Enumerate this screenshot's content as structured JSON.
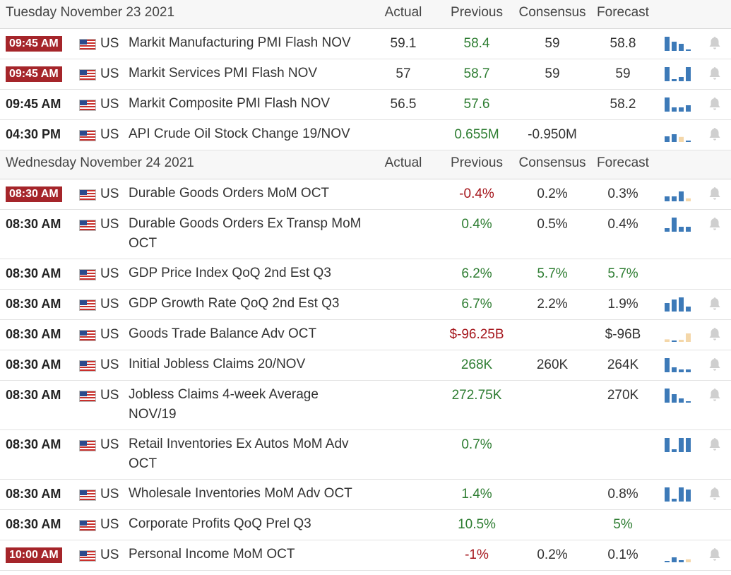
{
  "columns": {
    "actual": "Actual",
    "previous": "Previous",
    "consensus": "Consensus",
    "forecast": "Forecast"
  },
  "days": [
    {
      "date": "Tuesday November 23 2021",
      "events": [
        {
          "time": "09:45 AM",
          "highlight": true,
          "country": "US",
          "event": "Markit Manufacturing PMI Flash NOV",
          "actual": "59.1",
          "previous": "58.4",
          "previous_tone": "green",
          "consensus": "59",
          "consensus_tone": "",
          "forecast": "58.8",
          "forecast_tone": "",
          "bars": [
            1.0,
            0.65,
            0.5,
            -0.1
          ],
          "bell": true
        },
        {
          "time": "09:45 AM",
          "highlight": true,
          "country": "US",
          "event": "Markit Services PMI Flash NOV",
          "actual": "57",
          "previous": "58.7",
          "previous_tone": "green",
          "consensus": "59",
          "consensus_tone": "",
          "forecast": "59",
          "forecast_tone": "",
          "bars": [
            1.0,
            0.15,
            0.3,
            1.0
          ],
          "bell": true
        },
        {
          "time": "09:45 AM",
          "highlight": false,
          "country": "US",
          "event": "Markit Composite PMI Flash NOV",
          "actual": "56.5",
          "previous": "57.6",
          "previous_tone": "green",
          "consensus": "",
          "consensus_tone": "",
          "forecast": "58.2",
          "forecast_tone": "",
          "bars": [
            1.0,
            0.3,
            0.3,
            0.45
          ],
          "bell": true
        },
        {
          "time": "04:30 PM",
          "highlight": false,
          "country": "US",
          "event": "API Crude Oil Stock Change 19/NOV",
          "actual": "",
          "previous": "0.655M",
          "previous_tone": "green",
          "consensus": "-0.950M",
          "consensus_tone": "",
          "forecast": "",
          "forecast_tone": "",
          "bars": [
            0.4,
            0.55,
            -0.6,
            0.1
          ],
          "bell": true
        }
      ]
    },
    {
      "date": "Wednesday November 24 2021",
      "events": [
        {
          "time": "08:30 AM",
          "highlight": true,
          "country": "US",
          "event": "Durable Goods Orders MoM OCT",
          "actual": "",
          "previous": "-0.4%",
          "previous_tone": "red",
          "consensus": "0.2%",
          "consensus_tone": "",
          "forecast": "0.3%",
          "forecast_tone": "",
          "bars": [
            0.35,
            0.35,
            0.7,
            -0.35
          ],
          "bell": true
        },
        {
          "time": "08:30 AM",
          "highlight": false,
          "country": "US",
          "event": "Durable Goods Orders Ex Transp MoM OCT",
          "actual": "",
          "previous": "0.4%",
          "previous_tone": "green",
          "consensus": "0.5%",
          "consensus_tone": "",
          "forecast": "0.4%",
          "forecast_tone": "",
          "bars": [
            0.25,
            1.0,
            0.35,
            0.35
          ],
          "bell": true
        },
        {
          "time": "08:30 AM",
          "highlight": false,
          "country": "US",
          "event": "GDP Price Index QoQ 2nd Est Q3",
          "actual": "",
          "previous": "6.2%",
          "previous_tone": "green",
          "consensus": "5.7%",
          "consensus_tone": "green",
          "forecast": "5.7%",
          "forecast_tone": "green",
          "bars": [],
          "bell": false
        },
        {
          "time": "08:30 AM",
          "highlight": false,
          "country": "US",
          "event": "GDP Growth Rate QoQ 2nd Est Q3",
          "actual": "",
          "previous": "6.7%",
          "previous_tone": "green",
          "consensus": "2.2%",
          "consensus_tone": "",
          "forecast": "1.9%",
          "forecast_tone": "",
          "bars": [
            0.6,
            0.85,
            1.0,
            0.35
          ],
          "bell": true
        },
        {
          "time": "08:30 AM",
          "highlight": false,
          "country": "US",
          "event": "Goods Trade Balance Adv OCT",
          "actual": "",
          "previous": "$-96.25B",
          "previous_tone": "red",
          "consensus": "",
          "consensus_tone": "",
          "forecast": "$-96B",
          "forecast_tone": "",
          "bars": [
            -0.3,
            -0.1,
            -0.25,
            -1.0
          ],
          "bell": true
        },
        {
          "time": "08:30 AM",
          "highlight": false,
          "country": "US",
          "event": "Initial Jobless Claims 20/NOV",
          "actual": "",
          "previous": "268K",
          "previous_tone": "green",
          "consensus": "260K",
          "consensus_tone": "",
          "forecast": "264K",
          "forecast_tone": "",
          "bars": [
            1.0,
            0.35,
            0.2,
            0.2
          ],
          "bell": true
        },
        {
          "time": "08:30 AM",
          "highlight": false,
          "country": "US",
          "event": "Jobless Claims 4-week Average NOV/19",
          "actual": "",
          "previous": "272.75K",
          "previous_tone": "green",
          "consensus": "",
          "consensus_tone": "",
          "forecast": "270K",
          "forecast_tone": "",
          "bars": [
            1.0,
            0.6,
            0.3,
            -0.1
          ],
          "bell": true
        },
        {
          "time": "08:30 AM",
          "highlight": false,
          "country": "US",
          "event": "Retail Inventories Ex Autos MoM Adv OCT",
          "actual": "",
          "previous": "0.7%",
          "previous_tone": "green",
          "consensus": "",
          "consensus_tone": "",
          "forecast": "",
          "forecast_tone": "",
          "bars": [
            1.0,
            0.2,
            1.0,
            1.0
          ],
          "bell": true
        },
        {
          "time": "08:30 AM",
          "highlight": false,
          "country": "US",
          "event": "Wholesale Inventories MoM Adv OCT",
          "actual": "",
          "previous": "1.4%",
          "previous_tone": "green",
          "consensus": "",
          "consensus_tone": "",
          "forecast": "0.8%",
          "forecast_tone": "",
          "bars": [
            1.0,
            0.2,
            1.0,
            0.85
          ],
          "bell": true
        },
        {
          "time": "08:30 AM",
          "highlight": false,
          "country": "US",
          "event": "Corporate Profits QoQ Prel Q3",
          "actual": "",
          "previous": "10.5%",
          "previous_tone": "green",
          "consensus": "",
          "consensus_tone": "",
          "forecast": "5%",
          "forecast_tone": "green",
          "bars": [],
          "bell": false
        },
        {
          "time": "10:00 AM",
          "highlight": true,
          "country": "US",
          "event": "Personal Income MoM OCT",
          "actual": "",
          "previous": "-1%",
          "previous_tone": "red",
          "consensus": "0.2%",
          "consensus_tone": "",
          "forecast": "0.1%",
          "forecast_tone": "",
          "bars": [
            0.1,
            0.35,
            0.15,
            -0.35
          ],
          "bell": true
        }
      ]
    }
  ],
  "colors": {
    "bar_positive": "#3d7ab8",
    "bar_negative": "#f4d7a9",
    "bell": "#cfcfcf",
    "time_badge": "#a5252a",
    "green": "#2e7d32",
    "red": "#a5161c"
  },
  "icons": {
    "flag": "us-flag-icon",
    "bell": "bell-icon",
    "chart": "mini-bar-chart"
  }
}
